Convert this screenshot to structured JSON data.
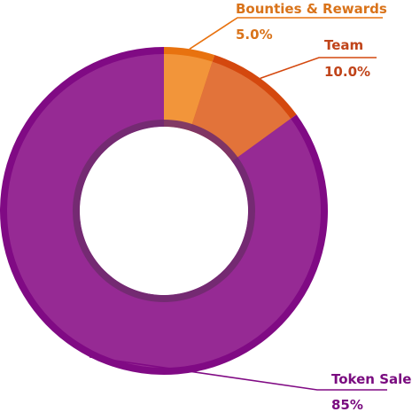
{
  "chart_data": {
    "type": "pie",
    "variant": "donut",
    "slices": [
      {
        "label": "Bounties & Rewards",
        "value": 5.0,
        "value_label": "5.0%",
        "color": "#F2953A",
        "rim_color": "#E8720F",
        "text_color": "#D9731A",
        "label_side": "top-right"
      },
      {
        "label": "Team",
        "value": 10.0,
        "value_label": "10.0%",
        "color": "#E2733A",
        "rim_color": "#D4480E",
        "text_color": "#C0441A",
        "label_side": "top-right"
      },
      {
        "label": "Token Sale",
        "value": 85.0,
        "value_label": "85%",
        "color": "#962A94",
        "rim_color": "#800A84",
        "text_color": "#7A0C80",
        "label_side": "bottom-right"
      }
    ],
    "inner_shadow_color": "#6E2A6C"
  }
}
